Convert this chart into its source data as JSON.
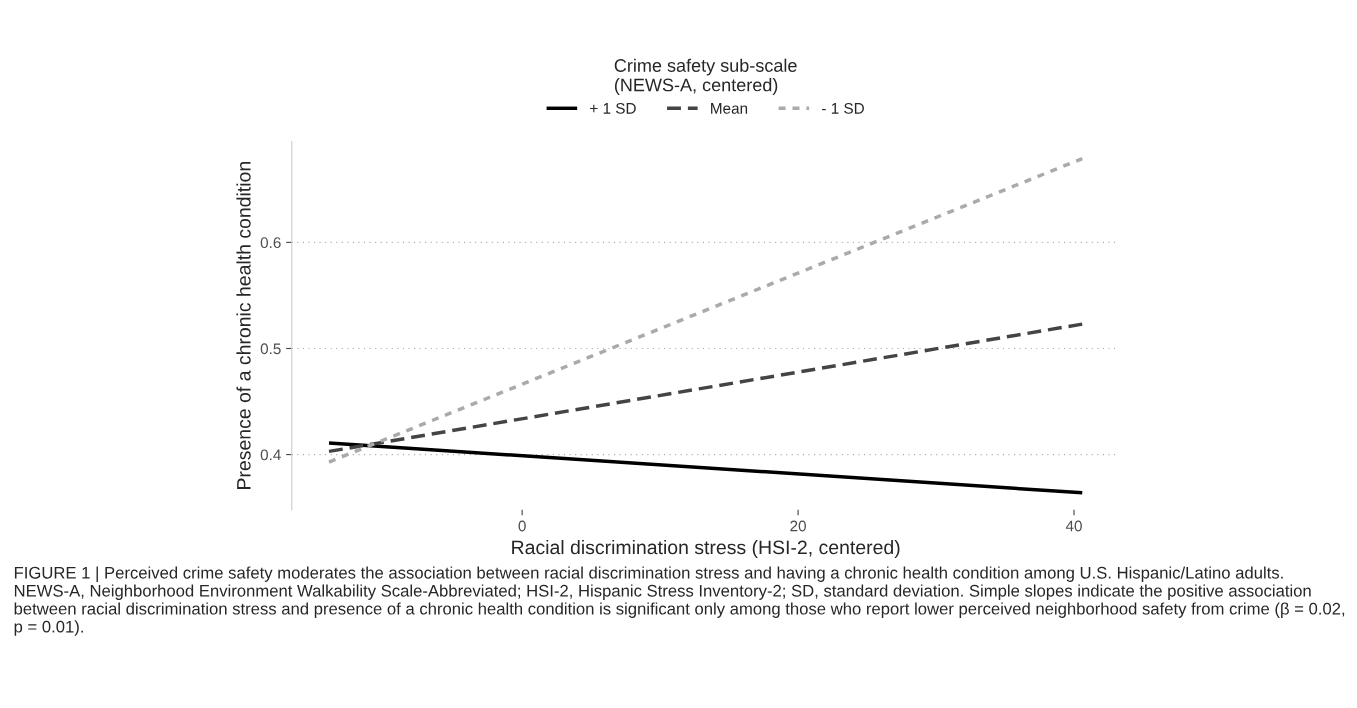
{
  "chart_data": {
    "type": "line",
    "xlabel": "Racial discrimination stress (HSI-2, centered)",
    "ylabel": "Presence of a chronic health condition",
    "legend_title": "Crime safety sub-scale\n(NEWS-A, centered)",
    "legend": "top",
    "x": [
      -14,
      40.6
    ],
    "series": [
      {
        "name": "+ 1 SD",
        "color": "#000000",
        "line_style": "solid",
        "values": [
          0.411,
          0.364
        ]
      },
      {
        "name": "Mean",
        "color": "#444444",
        "line_style": "dashed",
        "values": [
          0.403,
          0.523
        ]
      },
      {
        "name": "- 1 SD",
        "color": "#aaaaaa",
        "line_style": "dotted",
        "values": [
          0.393,
          0.679
        ]
      }
    ],
    "xlim": [
      -16.7,
      43.3
    ],
    "ylim": [
      0.348,
      0.695
    ],
    "xticks": [
      0,
      20,
      40
    ],
    "yticks": [
      0.4,
      0.5,
      0.6
    ],
    "grid": "y",
    "annotations": [
      "FIGURE 1 | Perceived crime safety moderates the association between racial discrimination stress and having a chronic health condition among U.S. Hispanic/Latino adults. NEWS-A, Neighborhood Environment Walkability Scale-Abbreviated; HSI-2, Hispanic Stress Inventory-2; SD, standard deviation. Simple slopes indicate the positive association between racial discrimination stress and presence of a chronic health condition is significant only among those who report lower perceived neighborhood safety from crime (β = 0.02, p = 0.01)."
    ]
  }
}
